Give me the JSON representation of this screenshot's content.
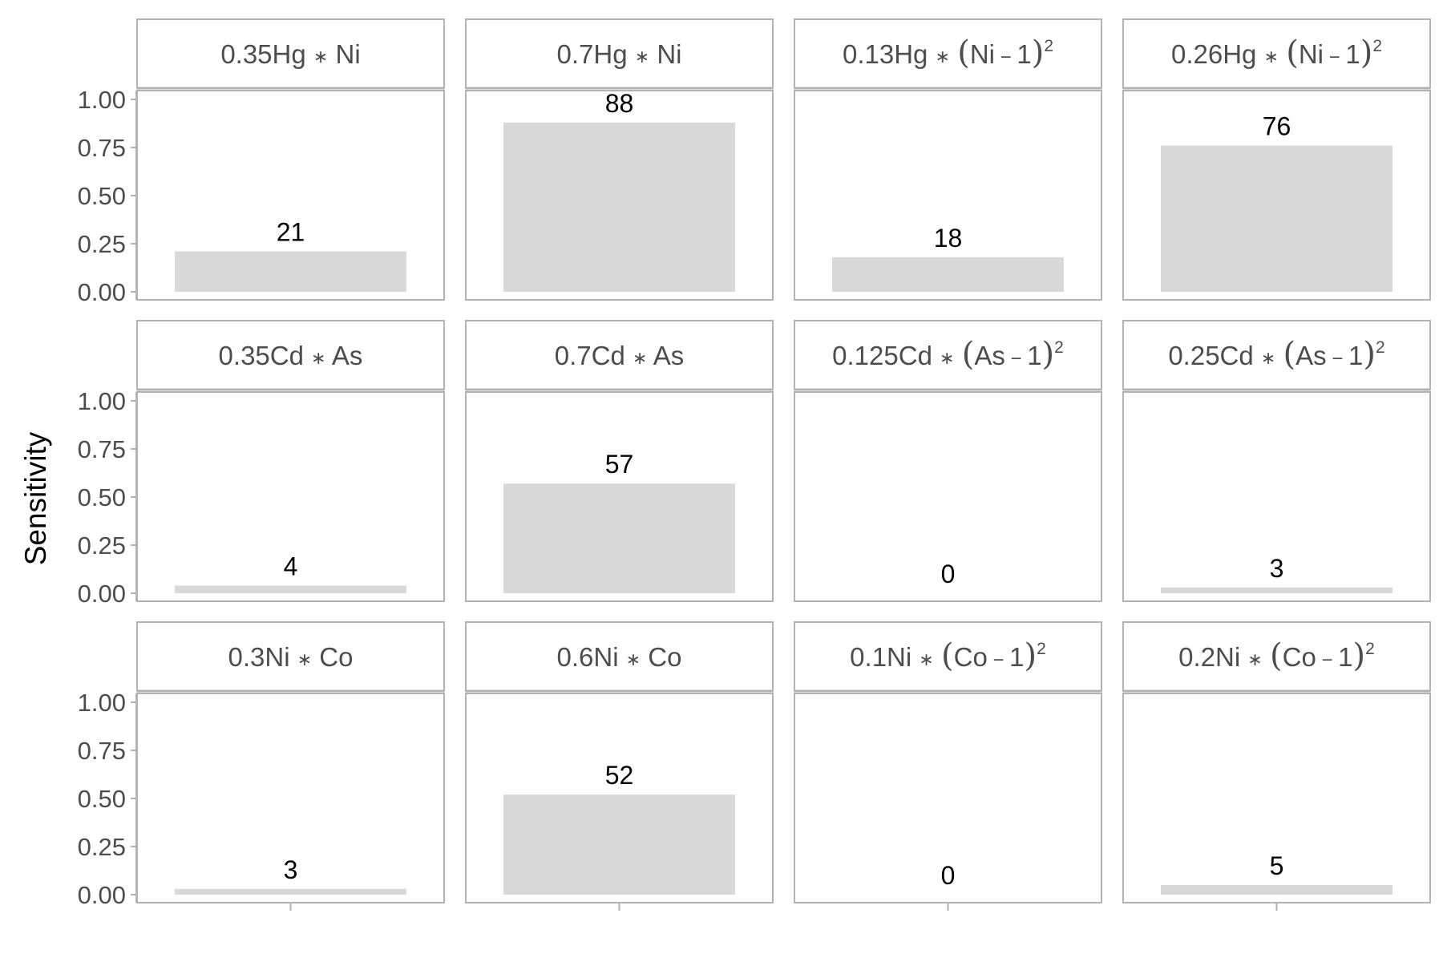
{
  "chart_data": {
    "type": "bar",
    "ylabel": "Sensitivity",
    "xlabel": "",
    "ylim": [
      0,
      1
    ],
    "y_ticks": [
      "0.00",
      "0.25",
      "0.50",
      "0.75",
      "1.00"
    ],
    "layout": "facet grid, 3 rows x 4 columns",
    "grid": false,
    "bar_color": "#d9d9d9",
    "panels": [
      {
        "title": {
          "pre": "0.35Hg ",
          "op": "∗",
          "var": "Ni",
          "sq": false
        },
        "value": 0.21,
        "label": "21"
      },
      {
        "title": {
          "pre": "0.7Hg ",
          "op": "∗",
          "var": "Ni",
          "sq": false
        },
        "value": 0.88,
        "label": "88"
      },
      {
        "title": {
          "pre": "0.13Hg ",
          "op": "∗",
          "var": "Ni",
          "sq": true
        },
        "value": 0.18,
        "label": "18"
      },
      {
        "title": {
          "pre": "0.26Hg ",
          "op": "∗",
          "var": "Ni",
          "sq": true
        },
        "value": 0.76,
        "label": "76"
      },
      {
        "title": {
          "pre": "0.35Cd ",
          "op": "∗",
          "var": "As",
          "sq": false
        },
        "value": 0.04,
        "label": "4"
      },
      {
        "title": {
          "pre": "0.7Cd ",
          "op": "∗",
          "var": "As",
          "sq": false
        },
        "value": 0.57,
        "label": "57"
      },
      {
        "title": {
          "pre": "0.125Cd ",
          "op": "∗",
          "var": "As",
          "sq": true
        },
        "value": 0.0,
        "label": "0"
      },
      {
        "title": {
          "pre": "0.25Cd ",
          "op": "∗",
          "var": "As",
          "sq": true
        },
        "value": 0.03,
        "label": "3"
      },
      {
        "title": {
          "pre": "0.3Ni ",
          "op": "∗",
          "var": "Co",
          "sq": false
        },
        "value": 0.03,
        "label": "3"
      },
      {
        "title": {
          "pre": "0.6Ni ",
          "op": "∗",
          "var": "Co",
          "sq": false
        },
        "value": 0.52,
        "label": "52"
      },
      {
        "title": {
          "pre": "0.1Ni ",
          "op": "∗",
          "var": "Co",
          "sq": true
        },
        "value": 0.0,
        "label": "0"
      },
      {
        "title": {
          "pre": "0.2Ni ",
          "op": "∗",
          "var": "Co",
          "sq": true
        },
        "value": 0.05,
        "label": "5"
      }
    ]
  }
}
